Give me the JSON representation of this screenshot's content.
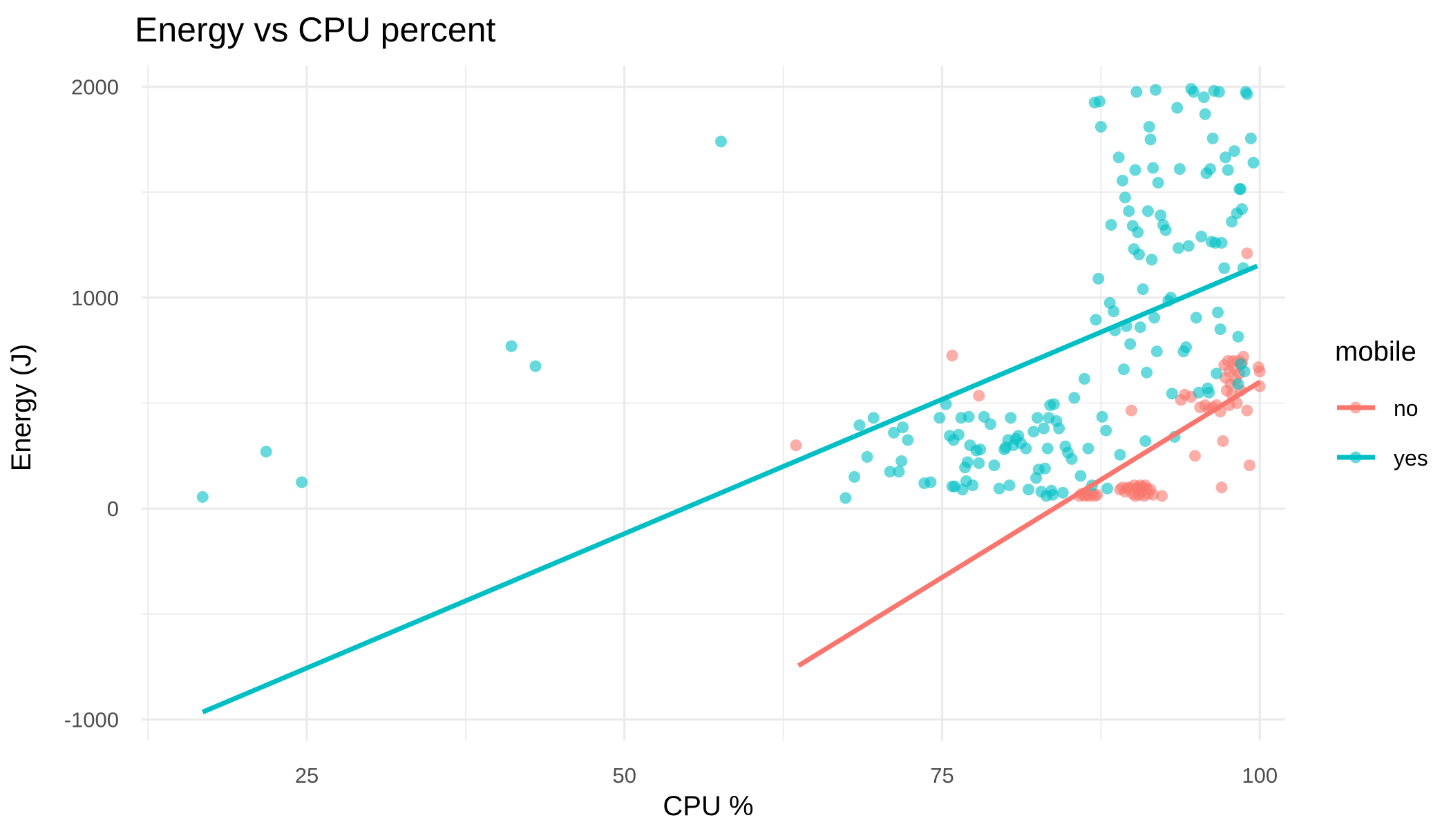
{
  "chart_data": {
    "type": "scatter",
    "title": "Energy vs CPU percent",
    "xlabel": "CPU %",
    "ylabel": "Energy (J)",
    "xlim": [
      12,
      102
    ],
    "ylim": [
      -1100,
      2100
    ],
    "x_ticks": [
      25,
      50,
      75,
      100
    ],
    "y_ticks": [
      -1000,
      0,
      1000,
      2000
    ],
    "x_minor_ticks": [
      12.5,
      37.5,
      62.5,
      87.5
    ],
    "y_minor_ticks": [
      -500,
      500,
      1500
    ],
    "grid": true,
    "legend": {
      "title": "mobile",
      "position": "right"
    },
    "series": [
      {
        "name": "no",
        "color": "#F8766D",
        "points": [
          [
            63.5,
            300
          ],
          [
            75.8,
            725
          ],
          [
            77.9,
            535
          ],
          [
            85.8,
            60
          ],
          [
            86.0,
            70
          ],
          [
            86.2,
            60
          ],
          [
            86.4,
            65
          ],
          [
            86.6,
            60
          ],
          [
            86.8,
            70
          ],
          [
            87.0,
            60
          ],
          [
            87.2,
            65
          ],
          [
            89.0,
            90
          ],
          [
            89.2,
            100
          ],
          [
            89.4,
            80
          ],
          [
            89.6,
            95
          ],
          [
            89.7,
            100
          ],
          [
            89.9,
            465
          ],
          [
            90.0,
            70
          ],
          [
            90.1,
            110
          ],
          [
            90.2,
            60
          ],
          [
            90.3,
            95
          ],
          [
            90.4,
            100
          ],
          [
            90.5,
            65
          ],
          [
            90.6,
            110
          ],
          [
            90.7,
            80
          ],
          [
            90.8,
            100
          ],
          [
            90.9,
            60
          ],
          [
            91.0,
            110
          ],
          [
            91.1,
            95
          ],
          [
            91.2,
            70
          ],
          [
            91.4,
            90
          ],
          [
            91.6,
            65
          ],
          [
            92.3,
            60
          ],
          [
            93.8,
            515
          ],
          [
            94.1,
            540
          ],
          [
            94.6,
            530
          ],
          [
            94.9,
            250
          ],
          [
            95.3,
            480
          ],
          [
            95.7,
            490
          ],
          [
            96.0,
            470
          ],
          [
            96.3,
            480
          ],
          [
            96.6,
            490
          ],
          [
            96.9,
            460
          ],
          [
            97.1,
            320
          ],
          [
            97.0,
            100
          ],
          [
            97.2,
            680
          ],
          [
            97.3,
            620
          ],
          [
            97.4,
            560
          ],
          [
            97.5,
            700
          ],
          [
            97.6,
            650
          ],
          [
            97.7,
            590
          ],
          [
            97.8,
            540
          ],
          [
            97.9,
            700
          ],
          [
            98.0,
            660
          ],
          [
            98.1,
            610
          ],
          [
            98.2,
            500
          ],
          [
            98.3,
            700
          ],
          [
            98.4,
            640
          ],
          [
            98.5,
            560
          ],
          [
            98.6,
            690
          ],
          [
            98.7,
            720
          ],
          [
            99.0,
            1210
          ],
          [
            99.0,
            465
          ],
          [
            99.2,
            205
          ],
          [
            99.9,
            670
          ],
          [
            100.0,
            650
          ],
          [
            100.0,
            580
          ],
          [
            97.6,
            490
          ]
        ],
        "fit": [
          [
            63.7,
            -745
          ],
          [
            100.0,
            600
          ]
        ]
      },
      {
        "name": "yes",
        "color": "#00BFC4",
        "points": [
          [
            16.8,
            55
          ],
          [
            21.8,
            270
          ],
          [
            24.6,
            125
          ],
          [
            41.1,
            770
          ],
          [
            43.0,
            675
          ],
          [
            57.6,
            1740
          ],
          [
            67.4,
            50
          ],
          [
            68.1,
            150
          ],
          [
            68.5,
            395
          ],
          [
            69.1,
            245
          ],
          [
            69.6,
            430
          ],
          [
            70.9,
            175
          ],
          [
            71.2,
            360
          ],
          [
            71.6,
            175
          ],
          [
            71.8,
            225
          ],
          [
            71.9,
            385
          ],
          [
            72.3,
            325
          ],
          [
            73.6,
            120
          ],
          [
            74.1,
            125
          ],
          [
            74.8,
            430
          ],
          [
            75.3,
            495
          ],
          [
            75.6,
            345
          ],
          [
            75.8,
            105
          ],
          [
            75.9,
            325
          ],
          [
            76.0,
            105
          ],
          [
            76.3,
            350
          ],
          [
            76.5,
            430
          ],
          [
            76.6,
            90
          ],
          [
            76.8,
            195
          ],
          [
            76.9,
            130
          ],
          [
            77.0,
            220
          ],
          [
            77.1,
            435
          ],
          [
            77.2,
            300
          ],
          [
            77.4,
            110
          ],
          [
            77.7,
            275
          ],
          [
            77.9,
            215
          ],
          [
            78.0,
            280
          ],
          [
            78.3,
            435
          ],
          [
            78.8,
            400
          ],
          [
            79.1,
            205
          ],
          [
            79.5,
            95
          ],
          [
            79.9,
            280
          ],
          [
            80.0,
            290
          ],
          [
            80.2,
            325
          ],
          [
            80.3,
            110
          ],
          [
            80.4,
            430
          ],
          [
            80.6,
            300
          ],
          [
            80.8,
            330
          ],
          [
            81.0,
            345
          ],
          [
            81.2,
            310
          ],
          [
            81.6,
            285
          ],
          [
            81.8,
            90
          ],
          [
            82.2,
            365
          ],
          [
            82.4,
            145
          ],
          [
            82.5,
            430
          ],
          [
            82.6,
            185
          ],
          [
            82.8,
            80
          ],
          [
            83.0,
            380
          ],
          [
            83.1,
            190
          ],
          [
            83.2,
            60
          ],
          [
            83.3,
            285
          ],
          [
            83.4,
            430
          ],
          [
            83.5,
            490
          ],
          [
            83.6,
            85
          ],
          [
            83.7,
            65
          ],
          [
            83.8,
            495
          ],
          [
            84.0,
            415
          ],
          [
            84.2,
            380
          ],
          [
            84.5,
            75
          ],
          [
            84.7,
            295
          ],
          [
            84.9,
            265
          ],
          [
            85.2,
            235
          ],
          [
            85.4,
            525
          ],
          [
            85.9,
            155
          ],
          [
            86.2,
            615
          ],
          [
            86.5,
            285
          ],
          [
            86.8,
            110
          ],
          [
            87.0,
            1925
          ],
          [
            87.1,
            895
          ],
          [
            87.3,
            1090
          ],
          [
            87.4,
            1930
          ],
          [
            87.5,
            1810
          ],
          [
            87.6,
            435
          ],
          [
            87.9,
            370
          ],
          [
            88.0,
            95
          ],
          [
            88.2,
            975
          ],
          [
            88.3,
            1345
          ],
          [
            88.5,
            935
          ],
          [
            88.6,
            845
          ],
          [
            88.9,
            1665
          ],
          [
            89.0,
            255
          ],
          [
            89.2,
            1555
          ],
          [
            89.3,
            660
          ],
          [
            89.4,
            1475
          ],
          [
            89.5,
            865
          ],
          [
            89.7,
            1410
          ],
          [
            89.8,
            780
          ],
          [
            90.0,
            1340
          ],
          [
            90.1,
            1230
          ],
          [
            90.2,
            1605
          ],
          [
            90.3,
            1975
          ],
          [
            90.4,
            1310
          ],
          [
            90.5,
            1205
          ],
          [
            90.6,
            860
          ],
          [
            90.8,
            1040
          ],
          [
            91.0,
            320
          ],
          [
            91.1,
            645
          ],
          [
            91.2,
            1410
          ],
          [
            91.3,
            1810
          ],
          [
            91.4,
            1750
          ],
          [
            91.5,
            1180
          ],
          [
            91.6,
            1615
          ],
          [
            91.7,
            905
          ],
          [
            91.8,
            1985
          ],
          [
            91.9,
            745
          ],
          [
            92.0,
            1545
          ],
          [
            92.2,
            1390
          ],
          [
            92.4,
            1345
          ],
          [
            92.6,
            1320
          ],
          [
            92.8,
            985
          ],
          [
            93.0,
            1000
          ],
          [
            93.1,
            545
          ],
          [
            93.3,
            340
          ],
          [
            93.5,
            1900
          ],
          [
            93.6,
            1235
          ],
          [
            93.7,
            1610
          ],
          [
            94.0,
            745
          ],
          [
            94.2,
            765
          ],
          [
            94.4,
            1245
          ],
          [
            94.6,
            1990
          ],
          [
            94.8,
            1975
          ],
          [
            95.0,
            905
          ],
          [
            95.2,
            550
          ],
          [
            95.4,
            1290
          ],
          [
            95.6,
            1950
          ],
          [
            95.7,
            1870
          ],
          [
            95.8,
            1590
          ],
          [
            95.9,
            570
          ],
          [
            96.0,
            550
          ],
          [
            96.1,
            1610
          ],
          [
            96.2,
            1265
          ],
          [
            96.3,
            1755
          ],
          [
            96.4,
            1980
          ],
          [
            96.5,
            1260
          ],
          [
            96.6,
            640
          ],
          [
            96.7,
            930
          ],
          [
            96.8,
            1975
          ],
          [
            96.9,
            850
          ],
          [
            97.0,
            1260
          ],
          [
            97.2,
            1140
          ],
          [
            97.3,
            1665
          ],
          [
            97.5,
            1605
          ],
          [
            97.8,
            1360
          ],
          [
            98.0,
            1695
          ],
          [
            98.2,
            1400
          ],
          [
            98.3,
            815
          ],
          [
            98.4,
            1515
          ],
          [
            98.5,
            1515
          ],
          [
            98.6,
            1420
          ],
          [
            98.7,
            1140
          ],
          [
            98.8,
            650
          ],
          [
            98.9,
            1975
          ],
          [
            99.0,
            1965
          ],
          [
            99.3,
            1755
          ],
          [
            99.5,
            1640
          ],
          [
            98.5,
            685
          ],
          [
            98.3,
            590
          ]
        ],
        "fit": [
          [
            16.8,
            -965
          ],
          [
            99.8,
            1150
          ]
        ]
      }
    ]
  }
}
